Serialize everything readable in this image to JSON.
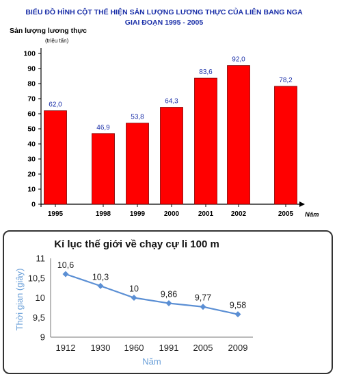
{
  "colors": {
    "bar_fill": "#ff0000",
    "bar_stroke": "#7a0000",
    "bar_title": "#1a2fa8",
    "bar_value_label": "#1a2fa8",
    "axis": "#000000",
    "line_series": "#5b8fd4",
    "line_title": "#111111",
    "line_axis_label": "#6a9fd8",
    "panel_border": "#333333"
  },
  "chart_data": [
    {
      "type": "bar",
      "title_line1": "BIỂU ĐỒ HÌNH CỘT THỂ HIỆN SẢN LƯỢNG LƯƠNG THỰC CỦA LIÊN BANG NGA",
      "title_line2": "GIAI ĐOẠN 1995 - 2005",
      "ylabel": "Sản lượng lương thực",
      "yunit": "(triệu tấn)",
      "xlabel": "Năm",
      "categories": [
        "1995",
        "1998",
        "1999",
        "2000",
        "2001",
        "2002",
        "2005"
      ],
      "values": [
        62.0,
        46.9,
        53.8,
        64.3,
        83.6,
        92.0,
        78.2
      ],
      "value_labels": [
        "62,0",
        "46,9",
        "53,8",
        "64,3",
        "83,6",
        "92,0",
        "78,2"
      ],
      "ylim": [
        0,
        100
      ],
      "yticks": [
        "0",
        "10",
        "20",
        "30",
        "40",
        "50",
        "60",
        "70",
        "80",
        "90",
        "100"
      ],
      "grid": false,
      "legend": "none"
    },
    {
      "type": "line",
      "title": "Kỉ lục thế giới về chạy cự li 100 m",
      "ylabel": "Thời gian (giây)",
      "xlabel": "Năm",
      "categories": [
        "1912",
        "1930",
        "1960",
        "1991",
        "2005",
        "2009"
      ],
      "values": [
        10.6,
        10.3,
        10,
        9.86,
        9.77,
        9.58
      ],
      "value_labels": [
        "10,6",
        "10,3",
        "10",
        "9,86",
        "9,77",
        "9,58"
      ],
      "ylim": [
        9,
        11
      ],
      "yticks": [
        "9",
        "9,5",
        "10",
        "10,5",
        "11"
      ],
      "grid": false,
      "legend": "none"
    }
  ]
}
